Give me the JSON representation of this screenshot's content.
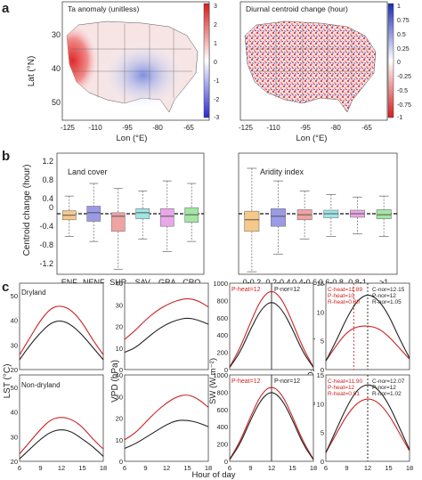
{
  "panel_labels": {
    "a": "a",
    "b": "b",
    "c": "c"
  },
  "panel_a": {
    "map_left": {
      "title": "Ta anomaly (unitless)",
      "colorbar_ticks": [
        "3",
        "2",
        "1",
        "0",
        "-1",
        "-2",
        "-3"
      ]
    },
    "map_right": {
      "title": "Diurnal centroid change (hour)",
      "colorbar_ticks": [
        "1",
        "0.75",
        "0.5",
        "0.25",
        "0",
        "-0.25",
        "-0.5",
        "-0.75",
        "-1"
      ]
    },
    "ylabel": "Lat (°N)",
    "xlabel": "Lon (°E)",
    "lat_ticks": [
      "50",
      "40",
      "30"
    ],
    "lon_ticks": [
      "-125",
      "-110",
      "-95",
      "-80",
      "-65"
    ]
  },
  "panel_b": {
    "ylabel": "Centroid change (hour)",
    "yticks": [
      "1.2",
      "0.8",
      "0.4",
      "0",
      "-0.4",
      "-0.8",
      "-1.2"
    ],
    "land_cover": {
      "title": "Land cover",
      "categories": [
        "ENF",
        "NENF",
        "SHR",
        "SAV",
        "GRA",
        "CRO"
      ]
    },
    "aridity": {
      "title": "Aridity index",
      "categories": [
        "0-0.2",
        "0.2-0.4",
        "0.4-0.6",
        "0.6-0.8",
        "0.8-1",
        ">1"
      ]
    }
  },
  "panel_c": {
    "row_labels": {
      "dryland": "Dryland",
      "non_dryland": "Non-dryland"
    },
    "xlabel": "Hour of day",
    "xticks": [
      "6",
      "9",
      "12",
      "15",
      "18"
    ],
    "ylabels": {
      "lst": "LST (°C)",
      "vpd": "VPD (hPa)",
      "sw": "SW (W m⁻²)",
      "gpp": "GPP (μmol CO₂ m⁻² s⁻¹)"
    },
    "lst_ticks": [
      "50",
      "40",
      "30",
      "20"
    ],
    "vpd_ticks": [
      "40",
      "30",
      "20",
      "10",
      "0"
    ],
    "sw_ticks": [
      "1000",
      "800",
      "600",
      "400",
      "200",
      "0"
    ],
    "gpp_ticks": [
      "15",
      "10",
      "5",
      "0"
    ],
    "sw_top_labels": {
      "heat": "P-heat=12",
      "nor": "P-nor=12"
    },
    "sw_bot_labels": {
      "heat": "P-heat=12",
      "nor": "P-nor=12"
    },
    "gpp_top_labels": {
      "heat": [
        "C-heat=11.89",
        "P-heat=10",
        "R-heat=0.80"
      ],
      "nor": [
        "C-nor=12.15",
        "P-nor=12",
        "R-nor=1.05"
      ]
    },
    "gpp_bot_labels": {
      "heat": [
        "C-heat=11.90",
        "P-heat=12",
        "R-heat=0.91"
      ],
      "nor": [
        "C-nor=12.07",
        "P-nor=12",
        "R-nor=1.02"
      ]
    }
  },
  "colors": {
    "heat": "#cc2222",
    "normal": "#222222",
    "red_map": "#e03a3a",
    "blue_map": "#2b3fc9"
  },
  "chart_data": [
    {
      "type": "box",
      "title": "Land cover",
      "categories": [
        "ENF",
        "NENF",
        "SHR",
        "SAV",
        "GRA",
        "CRO"
      ],
      "ylim": [
        -1.2,
        1.2
      ],
      "ylabel": "Centroid change (hour)",
      "colors": [
        "#f6c88a",
        "#9a9ae6",
        "#f0a3a3",
        "#9ee6e6",
        "#e8a8e8",
        "#a3e6a3"
      ],
      "boxes": [
        {
          "whisker_low": -0.45,
          "q1": -0.12,
          "median": -0.03,
          "q3": 0.06,
          "whisker_high": 0.35
        },
        {
          "whisker_low": -0.55,
          "q1": -0.15,
          "median": 0.02,
          "q3": 0.15,
          "whisker_high": 0.6
        },
        {
          "whisker_low": -1.1,
          "q1": -0.35,
          "median": -0.05,
          "q3": 0.02,
          "whisker_high": 0.5
        },
        {
          "whisker_low": -0.5,
          "q1": -0.1,
          "median": 0.02,
          "q3": 0.1,
          "whisker_high": 0.45
        },
        {
          "whisker_low": -0.75,
          "q1": -0.25,
          "median": -0.05,
          "q3": 0.1,
          "whisker_high": 0.65
        },
        {
          "whisker_low": -0.55,
          "q1": -0.17,
          "median": -0.02,
          "q3": 0.12,
          "whisker_high": 0.6
        }
      ]
    },
    {
      "type": "box",
      "title": "Aridity index",
      "categories": [
        "0-0.2",
        "0.2-0.4",
        "0.4-0.6",
        "0.6-0.8",
        "0.8-1",
        ">1"
      ],
      "ylim": [
        -1.2,
        1.2
      ],
      "colors": [
        "#f6c88a",
        "#9a9ae6",
        "#f0a3a3",
        "#9ee6e6",
        "#e8a8e8",
        "#a3e6a3"
      ],
      "boxes": [
        {
          "whisker_low": -1.15,
          "q1": -0.35,
          "median": -0.12,
          "q3": 0.05,
          "whisker_high": 0.9
        },
        {
          "whisker_low": -0.8,
          "q1": -0.25,
          "median": -0.05,
          "q3": 0.1,
          "whisker_high": 0.65
        },
        {
          "whisker_low": -0.5,
          "q1": -0.12,
          "median": -0.02,
          "q3": 0.08,
          "whisker_high": 0.45
        },
        {
          "whisker_low": -0.45,
          "q1": -0.08,
          "median": 0.0,
          "q3": 0.07,
          "whisker_high": 0.38
        },
        {
          "whisker_low": -0.4,
          "q1": -0.07,
          "median": 0.0,
          "q3": 0.07,
          "whisker_high": 0.33
        },
        {
          "whisker_low": -0.45,
          "q1": -0.1,
          "median": -0.02,
          "q3": 0.08,
          "whisker_high": 0.35
        }
      ]
    },
    {
      "type": "line",
      "title": "Dryland LST",
      "x": [
        6,
        7.5,
        9,
        10.5,
        12,
        13.5,
        15,
        16.5,
        18
      ],
      "ylim": [
        20,
        55
      ],
      "series": [
        {
          "role": "heat",
          "values": [
            26,
            33,
            40,
            45,
            46,
            44,
            39,
            32,
            26
          ]
        },
        {
          "role": "normal",
          "values": [
            24,
            30,
            35,
            39,
            40,
            38,
            34,
            29,
            24
          ]
        }
      ]
    },
    {
      "type": "line",
      "title": "Non-dryland LST",
      "x": [
        6,
        7.5,
        9,
        10.5,
        12,
        13.5,
        15,
        16.5,
        18
      ],
      "ylim": [
        20,
        55
      ],
      "series": [
        {
          "role": "heat",
          "values": [
            23,
            28,
            33,
            37,
            38,
            37,
            34,
            29,
            25
          ]
        },
        {
          "role": "normal",
          "values": [
            21,
            25,
            29,
            32,
            33,
            32,
            29,
            26,
            22
          ]
        }
      ]
    },
    {
      "type": "line",
      "title": "Dryland VPD",
      "x": [
        6,
        7.5,
        9,
        10.5,
        12,
        13.5,
        15,
        16.5,
        18
      ],
      "ylim": [
        0,
        40
      ],
      "series": [
        {
          "role": "heat",
          "values": [
            14,
            18,
            23,
            27,
            30,
            32,
            33,
            32,
            29
          ]
        },
        {
          "role": "normal",
          "values": [
            8,
            10,
            14,
            18,
            21,
            23,
            24,
            23,
            21
          ]
        }
      ]
    },
    {
      "type": "line",
      "title": "Non-dryland VPD",
      "x": [
        6,
        7.5,
        9,
        10.5,
        12,
        13.5,
        15,
        16.5,
        18
      ],
      "ylim": [
        0,
        40
      ],
      "series": [
        {
          "role": "heat",
          "values": [
            10,
            13,
            18,
            23,
            27,
            30,
            31,
            29,
            25
          ]
        },
        {
          "role": "normal",
          "values": [
            6,
            8,
            11,
            14,
            17,
            19,
            19,
            18,
            16
          ]
        }
      ]
    },
    {
      "type": "line",
      "title": "Dryland SW",
      "x": [
        6,
        7.5,
        9,
        10.5,
        12,
        13.5,
        15,
        16.5,
        18
      ],
      "ylim": [
        0,
        1000
      ],
      "series": [
        {
          "role": "heat",
          "values": [
            30,
            250,
            550,
            820,
            930,
            820,
            550,
            250,
            30
          ]
        },
        {
          "role": "normal",
          "values": [
            25,
            200,
            470,
            700,
            800,
            700,
            470,
            200,
            25
          ]
        }
      ]
    },
    {
      "type": "line",
      "title": "Non-dryland SW",
      "x": [
        6,
        7.5,
        9,
        10.5,
        12,
        13.5,
        15,
        16.5,
        18
      ],
      "ylim": [
        0,
        1000
      ],
      "series": [
        {
          "role": "heat",
          "values": [
            25,
            230,
            520,
            780,
            880,
            780,
            520,
            230,
            25
          ]
        },
        {
          "role": "normal",
          "values": [
            20,
            200,
            480,
            720,
            820,
            720,
            480,
            200,
            20
          ]
        }
      ]
    },
    {
      "type": "line",
      "title": "Dryland GPP",
      "x": [
        6,
        7.5,
        9,
        10.5,
        12,
        13.5,
        15,
        16.5,
        18
      ],
      "ylim": [
        0,
        15
      ],
      "series": [
        {
          "role": "heat",
          "values": [
            1.5,
            4.2,
            6.5,
            7.5,
            7.6,
            7.2,
            5.8,
            3.8,
            1.8
          ]
        },
        {
          "role": "normal",
          "values": [
            1.5,
            5,
            9,
            12,
            13.2,
            12.2,
            9.5,
            5.5,
            2
          ]
        }
      ]
    },
    {
      "type": "line",
      "title": "Non-dryland GPP",
      "x": [
        6,
        7.5,
        9,
        10.5,
        12,
        13.5,
        15,
        16.5,
        18
      ],
      "ylim": [
        0,
        15
      ],
      "series": [
        {
          "role": "heat",
          "values": [
            1.5,
            4.8,
            8,
            10.2,
            11,
            10.3,
            8.2,
            5,
            1.8
          ]
        },
        {
          "role": "normal",
          "values": [
            1.5,
            5.5,
            9.5,
            12.5,
            13.5,
            12.6,
            10,
            6,
            2
          ]
        }
      ]
    }
  ]
}
